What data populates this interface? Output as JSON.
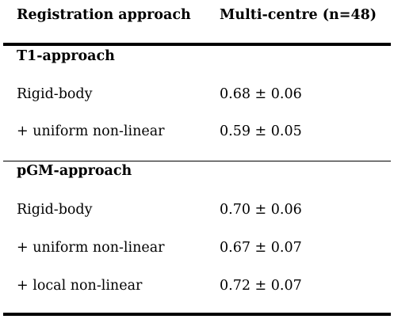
{
  "table": {
    "headers": [
      "Registration approach",
      "Multi-centre (n=48)"
    ],
    "sections": [
      {
        "title": "T1-approach",
        "rows": [
          {
            "label": "Rigid-body",
            "value": "0.68 ± 0.06"
          },
          {
            "label": "+ uniform non-linear",
            "value": "0.59 ± 0.05"
          }
        ]
      },
      {
        "title": "pGM-approach",
        "rows": [
          {
            "label": "Rigid-body",
            "value": "0.70 ± 0.06"
          },
          {
            "label": "+ uniform non-linear",
            "value": "0.67 ± 0.07"
          },
          {
            "label": "+ local non-linear",
            "value": "0.72 ± 0.07"
          }
        ]
      }
    ]
  }
}
